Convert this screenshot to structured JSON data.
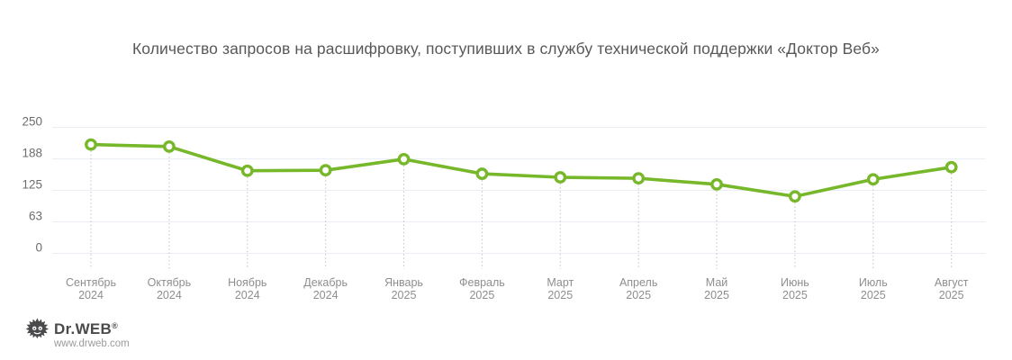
{
  "chart_data": {
    "type": "line",
    "title": "Количество запросов на расшифровку, поступивших в службу технической поддержки «Доктор Веб»",
    "categories": [
      {
        "month": "Сентябрь",
        "year": "2024"
      },
      {
        "month": "Октябрь",
        "year": "2024"
      },
      {
        "month": "Ноябрь",
        "year": "2024"
      },
      {
        "month": "Декабрь",
        "year": "2024"
      },
      {
        "month": "Январь",
        "year": "2025"
      },
      {
        "month": "Февраль",
        "year": "2025"
      },
      {
        "month": "Март",
        "year": "2025"
      },
      {
        "month": "Апрель",
        "year": "2025"
      },
      {
        "month": "Май",
        "year": "2025"
      },
      {
        "month": "Июнь",
        "year": "2025"
      },
      {
        "month": "Июль",
        "year": "2025"
      },
      {
        "month": "Август",
        "year": "2025"
      }
    ],
    "values": [
      215,
      211,
      163,
      164,
      186,
      157,
      150,
      148,
      136,
      112,
      146,
      170
    ],
    "y_ticks": [
      250,
      188,
      125,
      63,
      0
    ],
    "ylim": [
      0,
      250
    ],
    "grid": true,
    "legend": "none",
    "colors": {
      "line": "#77b72a",
      "marker_fill": "#ffffff",
      "grid": "#e9eff5",
      "drop_line": "#c2c2c2",
      "title_text": "#58585a",
      "y_label_text": "#6d6d6d",
      "x_label_text": "#8e8e8e"
    }
  },
  "logo": {
    "brand": "Dr.WEB",
    "registered": "®",
    "url": "www.drweb.com"
  }
}
